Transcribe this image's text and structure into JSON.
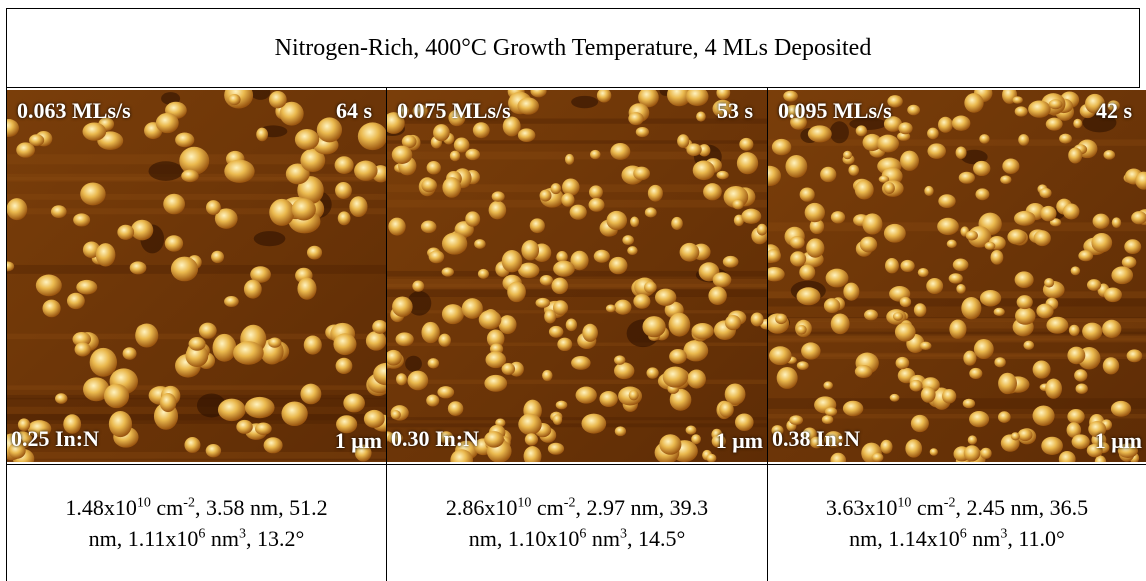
{
  "title": "Nitrogen-Rich, 400°C Growth Temperature, 4 MLs Deposited",
  "panels": [
    {
      "rate": "0.063 MLs/s",
      "time": "64 s",
      "ratio": "0.25 In:N",
      "scale": "1 μm",
      "caption": [
        {
          "text": "1.48x10",
          "sup": "10"
        },
        {
          "text": " cm",
          "sup": "-2"
        },
        {
          "text": ", 3.58 nm, 51.2 nm, 1.11x10",
          "sup": "6"
        },
        {
          "text": " nm",
          "sup": "3"
        },
        {
          "text": ", 13.2°"
        }
      ]
    },
    {
      "rate": "0.075 MLs/s",
      "time": "53 s",
      "ratio": "0.30 In:N",
      "scale": "1 μm",
      "caption": [
        {
          "text": "2.86x10",
          "sup": "10"
        },
        {
          "text": " cm",
          "sup": "-2"
        },
        {
          "text": ", 2.97 nm, 39.3 nm, 1.10x10",
          "sup": "6"
        },
        {
          "text": " nm",
          "sup": "3"
        },
        {
          "text": ", 14.5°"
        }
      ]
    },
    {
      "rate": "0.095 MLs/s",
      "time": "42 s",
      "ratio": "0.38 In:N",
      "scale": "1 μm",
      "caption": [
        {
          "text": "3.63x10",
          "sup": "10"
        },
        {
          "text": " cm",
          "sup": "-2"
        },
        {
          "text": ", 2.45 nm, 36.5 nm, 1.14x10",
          "sup": "6"
        },
        {
          "text": " nm",
          "sup": "3"
        },
        {
          "text": ", 11.0°"
        }
      ]
    }
  ]
}
